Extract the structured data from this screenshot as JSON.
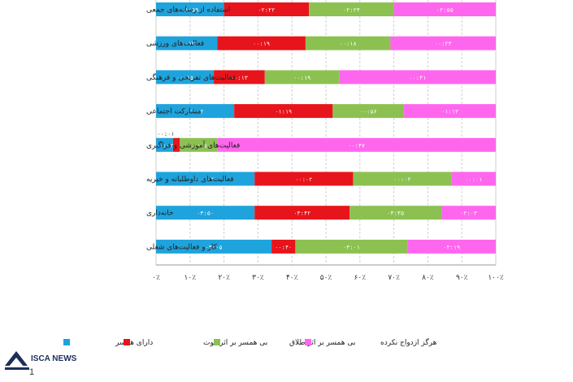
{
  "chart_data": {
    "type": "bar",
    "orientation": "horizontal",
    "stacked": "percent",
    "categories": [
      "استفاده از رسانه‌های جمعی",
      "فعالیت‌های ورزشی",
      "فعالیت‌های تفریحی و فرهنگی",
      "مشارکت اجتماعی",
      "فعالیت‌های آموزشی و فراگیری",
      "فعالیت‌های داوطلبانه و خیریه",
      "خانه‌داری",
      "کار و فعالیت‌های شغلی"
    ],
    "series": [
      {
        "name": "دارای همسر",
        "color": "#1fa3dc",
        "values": [
          20,
          18,
          17,
          23,
          5,
          29,
          29,
          34
        ],
        "labels": [
          "۰۱:۵۹",
          "۰۰:۱۳",
          "۰۰:۱۵",
          "۰۱:۰۲",
          "۰۰:۰۳",
          "۰۰:۰۲",
          "۰۳:۵۰",
          "۰۳:۰۵"
        ],
        "extra_labels": [
          "",
          "",
          "",
          "",
          "۰۰:۰۱",
          "",
          "",
          ""
        ]
      },
      {
        "name": "بی همسر بر اثر فوت",
        "color": "#e8141c",
        "values": [
          25,
          26,
          15,
          29,
          2,
          29,
          28,
          7
        ],
        "labels": [
          "۰۲:۲۲",
          "۰۰:۱۹",
          "۰۰:۱۳",
          "۰۱:۱۹",
          "",
          "۰۰:۰۲",
          "۰۳:۴۲",
          "۰۰:۴۰"
        ]
      },
      {
        "name": "بی همسر بر اثر طلاق",
        "color": "#8cc152",
        "values": [
          25,
          25,
          22,
          21,
          11,
          29,
          27,
          33
        ],
        "labels": [
          "۰۲:۲۴",
          "۰۰:۱۸",
          "۰۰:۱۹",
          "۰۰:۵۶",
          "۰۰:۰۵",
          "۰۰:۰۲",
          "۰۳:۳۵",
          "۰۳:۰۱"
        ]
      },
      {
        "name": "هرگز ازدواج نکرده",
        "color": "#ff66ee",
        "values": [
          30,
          31,
          46,
          27,
          82,
          13,
          16,
          26
        ],
        "labels": [
          "۰۲:۵۵",
          "۰۰:۲۳",
          "۰۰:۴۱",
          "۰۱:۱۳",
          "۰۰:۴۷",
          "۰۰:۰۱",
          "۰۲:۰۳",
          "۰۲:۱۹"
        ]
      }
    ],
    "xticks": [
      "۰٪",
      "۱۰٪",
      "۲۰٪",
      "۳۰٪",
      "۴۰٪",
      "۵۰٪",
      "۶۰٪",
      "۷۰٪",
      "۸۰٪",
      "۹۰٪",
      "۱۰۰٪"
    ],
    "xlim": [
      0,
      100
    ],
    "grid": true,
    "legend_placement": "bottom"
  },
  "watermark": {
    "text": "ISCA NEWS",
    "page_number": "1"
  }
}
